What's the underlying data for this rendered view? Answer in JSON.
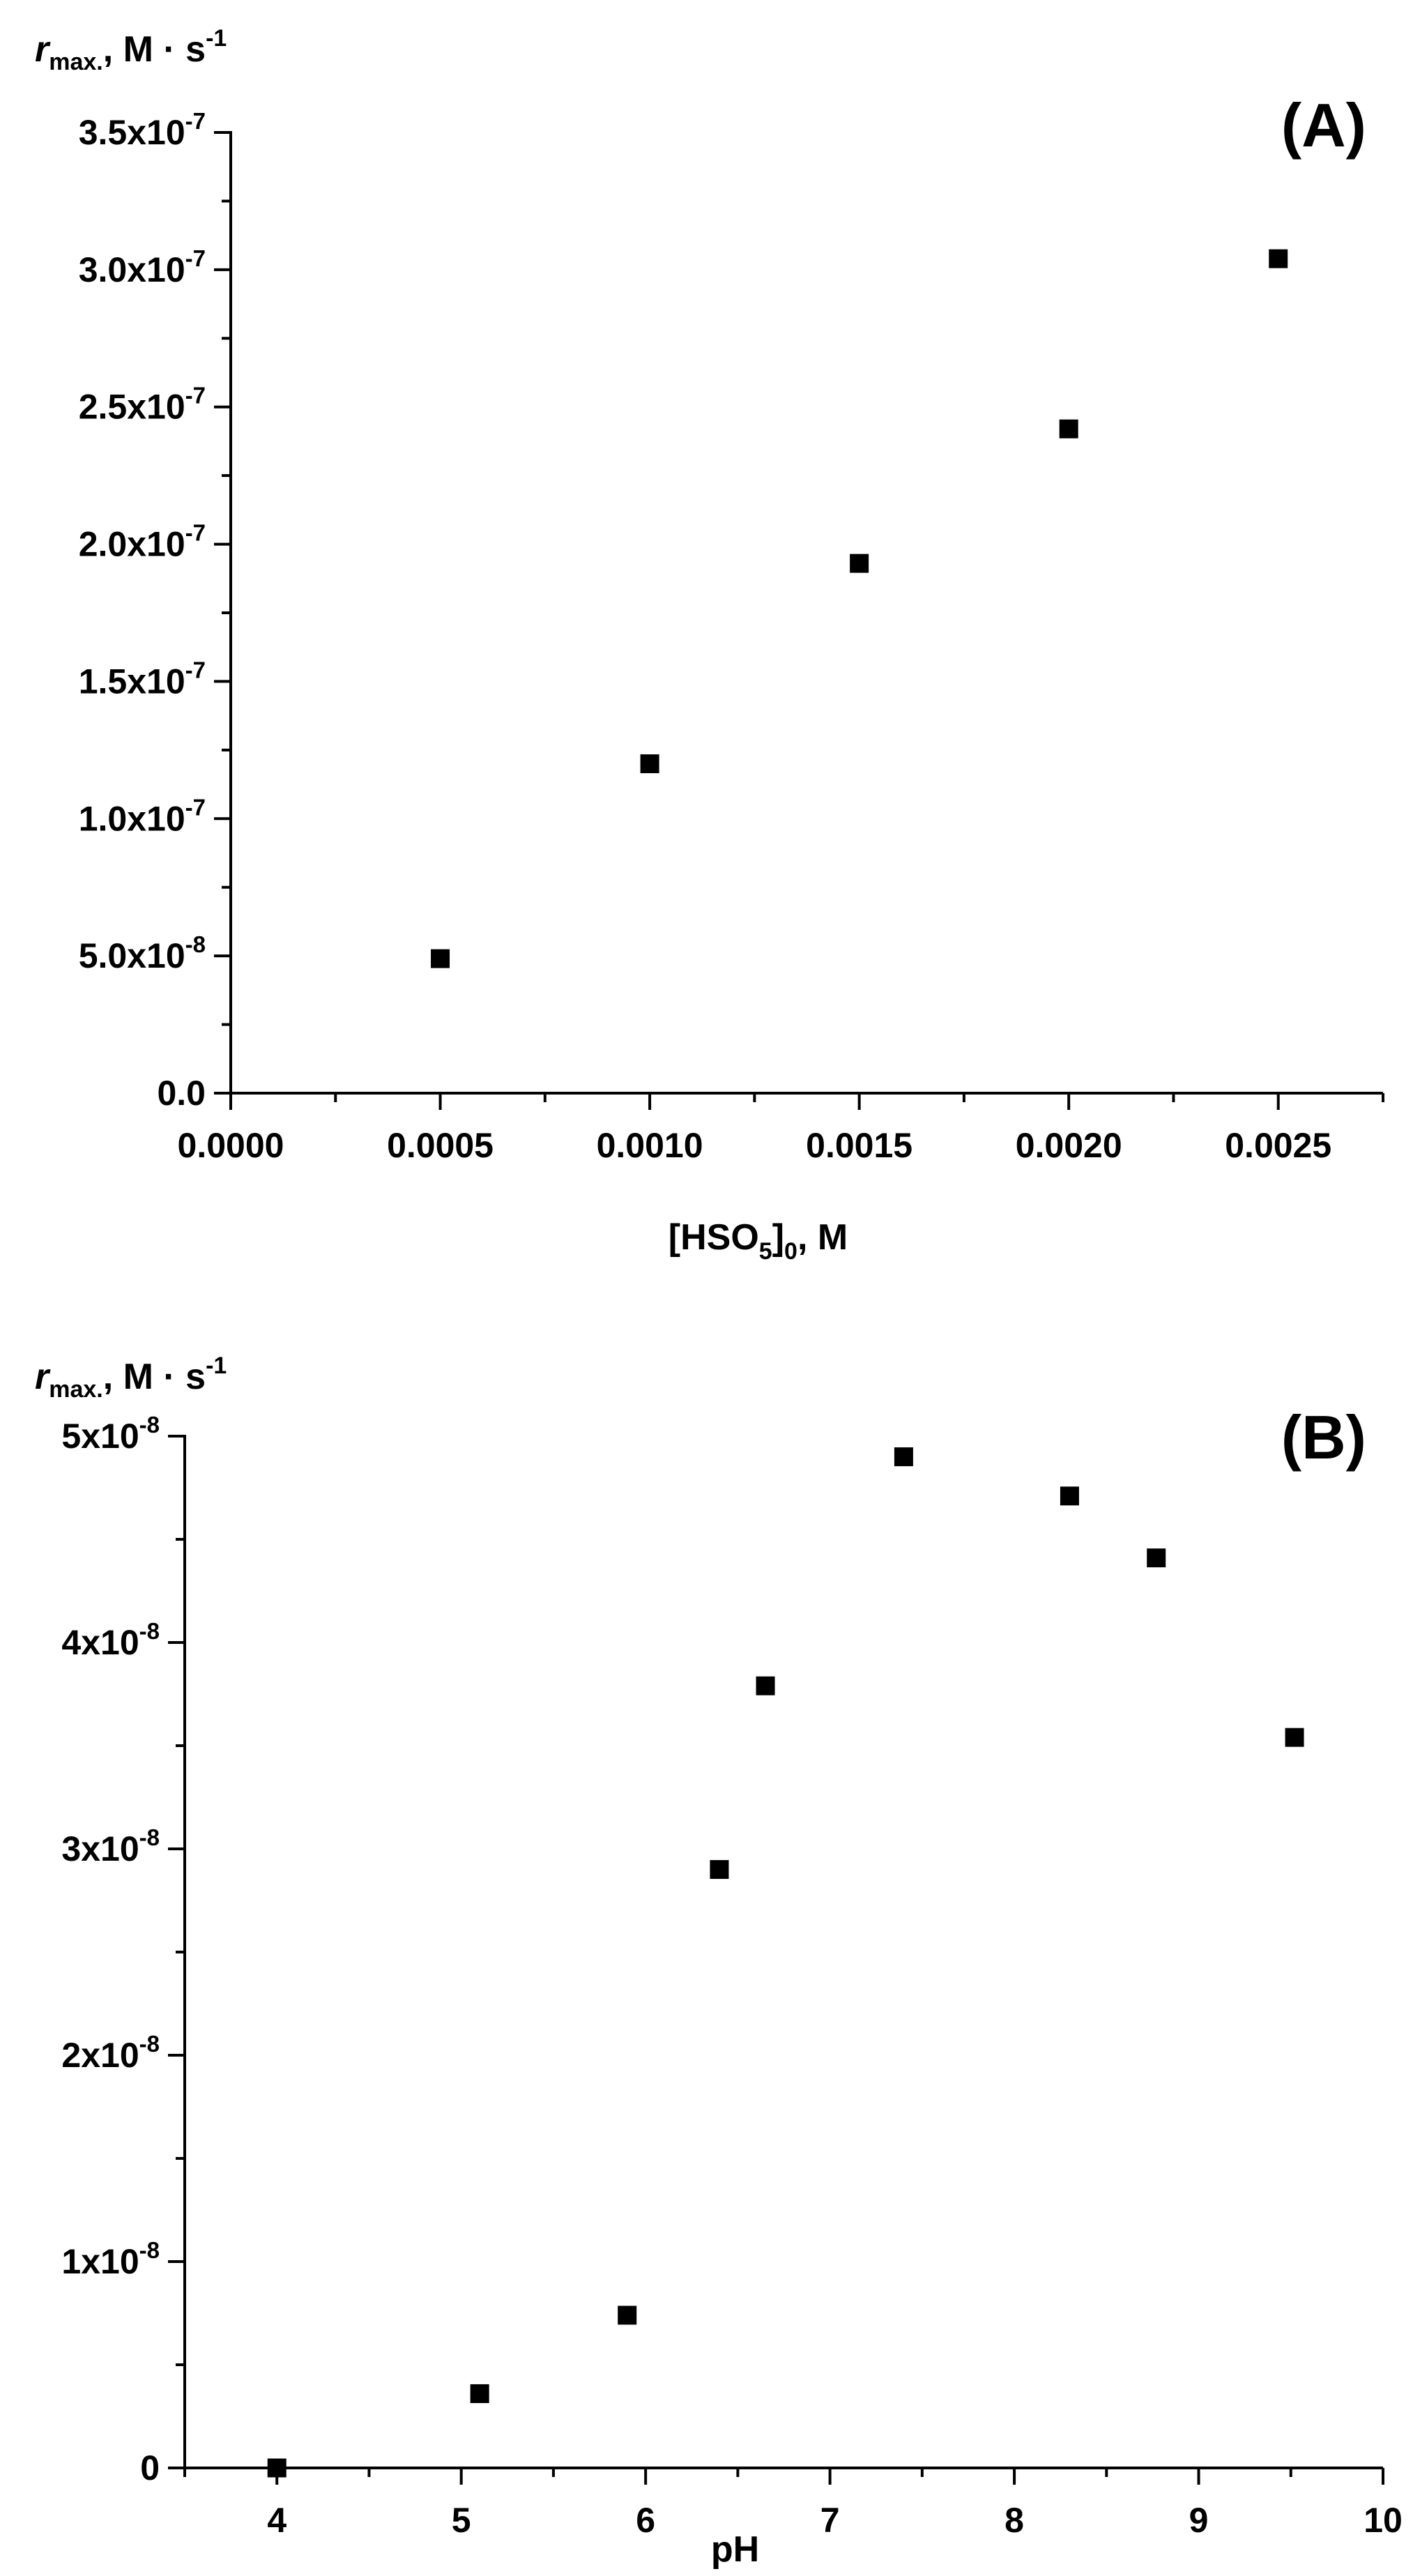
{
  "chart_data": [
    {
      "type": "scatter",
      "panel_label": "(A)",
      "ylabel": {
        "symbol": "r",
        "subscript": "max.",
        "unit": ", M · s",
        "unit_exp": "-1"
      },
      "xlabel": {
        "prefix": "[HSO",
        "subscript1": "5",
        "middle": "]",
        "subscript2": "0",
        "suffix": ", M"
      },
      "xlim": [
        0,
        0.00275
      ],
      "ylim": [
        0,
        3.5e-07
      ],
      "x_major_ticks": [
        0.0,
        0.0005,
        0.001,
        0.0015,
        0.002,
        0.0025
      ],
      "x_tick_labels": [
        "0.0000",
        "0.0005",
        "0.0010",
        "0.0015",
        "0.0020",
        "0.0025"
      ],
      "x_minor_ticks": [
        0.00025,
        0.00075,
        0.00125,
        0.00175,
        0.00225,
        0.00275
      ],
      "y_major_ticks": [
        0.0,
        5e-08,
        1e-07,
        1.5e-07,
        2e-07,
        2.5e-07,
        3e-07,
        3.5e-07
      ],
      "y_tick_labels": [
        {
          "mantissa": "0.0",
          "exp": ""
        },
        {
          "mantissa": "5.0x10",
          "exp": "-8"
        },
        {
          "mantissa": "1.0x10",
          "exp": "-7"
        },
        {
          "mantissa": "1.5x10",
          "exp": "-7"
        },
        {
          "mantissa": "2.0x10",
          "exp": "-7"
        },
        {
          "mantissa": "2.5x10",
          "exp": "-7"
        },
        {
          "mantissa": "3.0x10",
          "exp": "-7"
        },
        {
          "mantissa": "3.5x10",
          "exp": "-7"
        }
      ],
      "y_minor_ticks": [
        2.5e-08,
        7.5e-08,
        1.25e-07,
        1.75e-07,
        2.25e-07,
        2.75e-07,
        3.25e-07
      ],
      "points": [
        {
          "x": 0.0005,
          "y": 4.9e-08
        },
        {
          "x": 0.001,
          "y": 1.2e-07
        },
        {
          "x": 0.0015,
          "y": 1.93e-07
        },
        {
          "x": 0.002,
          "y": 2.42e-07
        },
        {
          "x": 0.0025,
          "y": 3.04e-07
        }
      ],
      "marker": "square",
      "grid": false,
      "legend": "none"
    },
    {
      "type": "scatter",
      "panel_label": "(B)",
      "ylabel": {
        "symbol": "r",
        "subscript": "max.",
        "unit": ", M · s",
        "unit_exp": "-1"
      },
      "xlabel": {
        "prefix": "pH",
        "subscript1": "",
        "middle": "",
        "subscript2": "",
        "suffix": ""
      },
      "xlim": [
        3.5,
        10
      ],
      "ylim": [
        0,
        5e-08
      ],
      "x_major_ticks": [
        4,
        5,
        6,
        7,
        8,
        9,
        10
      ],
      "x_tick_labels": [
        "4",
        "5",
        "6",
        "7",
        "8",
        "9",
        "10"
      ],
      "x_minor_ticks": [
        3.5,
        4.5,
        5.5,
        6.5,
        7.5,
        8.5,
        9.5
      ],
      "y_major_ticks": [
        0,
        1e-08,
        2e-08,
        3e-08,
        4e-08,
        5e-08
      ],
      "y_tick_labels": [
        {
          "mantissa": "0",
          "exp": ""
        },
        {
          "mantissa": "1x10",
          "exp": "-8"
        },
        {
          "mantissa": "2x10",
          "exp": "-8"
        },
        {
          "mantissa": "3x10",
          "exp": "-8"
        },
        {
          "mantissa": "4x10",
          "exp": "-8"
        },
        {
          "mantissa": "5x10",
          "exp": "-8"
        }
      ],
      "y_minor_ticks": [
        5e-09,
        1.5e-08,
        2.5e-08,
        3.5e-08,
        4.5e-08
      ],
      "points": [
        {
          "x": 4.0,
          "y": 0.0
        },
        {
          "x": 5.1,
          "y": 3.6e-09
        },
        {
          "x": 5.9,
          "y": 7.4e-09
        },
        {
          "x": 6.4,
          "y": 2.9e-08
        },
        {
          "x": 6.65,
          "y": 3.79e-08
        },
        {
          "x": 7.4,
          "y": 4.9e-08
        },
        {
          "x": 8.3,
          "y": 4.71e-08
        },
        {
          "x": 8.77,
          "y": 4.41e-08
        },
        {
          "x": 9.52,
          "y": 3.54e-08
        }
      ],
      "marker": "square",
      "grid": false,
      "legend": "none"
    }
  ]
}
